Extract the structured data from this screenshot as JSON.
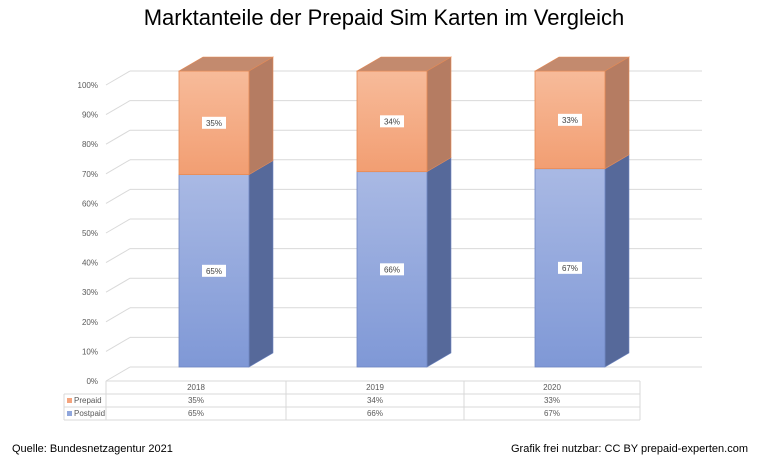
{
  "chart_data": {
    "type": "bar",
    "stacked": true,
    "three_d": true,
    "title": "Marktanteile der Prepaid Sim Karten im Vergleich",
    "categories": [
      "2018",
      "2019",
      "2020"
    ],
    "series": [
      {
        "name": "Postpaid",
        "values": [
          65,
          66,
          67
        ],
        "labels": [
          "65%",
          "66%",
          "67%"
        ],
        "color": "#8fa6dc"
      },
      {
        "name": "Prepaid",
        "values": [
          35,
          34,
          33
        ],
        "labels": [
          "35%",
          "34%",
          "33%"
        ],
        "color": "#f4a47e"
      }
    ],
    "y_ticks": [
      "0%",
      "10%",
      "20%",
      "30%",
      "40%",
      "50%",
      "60%",
      "70%",
      "80%",
      "90%",
      "100%"
    ],
    "ylim": [
      0,
      100
    ],
    "grid": true,
    "legend": "data-table"
  },
  "footer": {
    "source": "Quelle: Bundesnetzagentur 2021",
    "license": "Grafik frei nutzbar: CC BY prepaid-experten.com"
  }
}
